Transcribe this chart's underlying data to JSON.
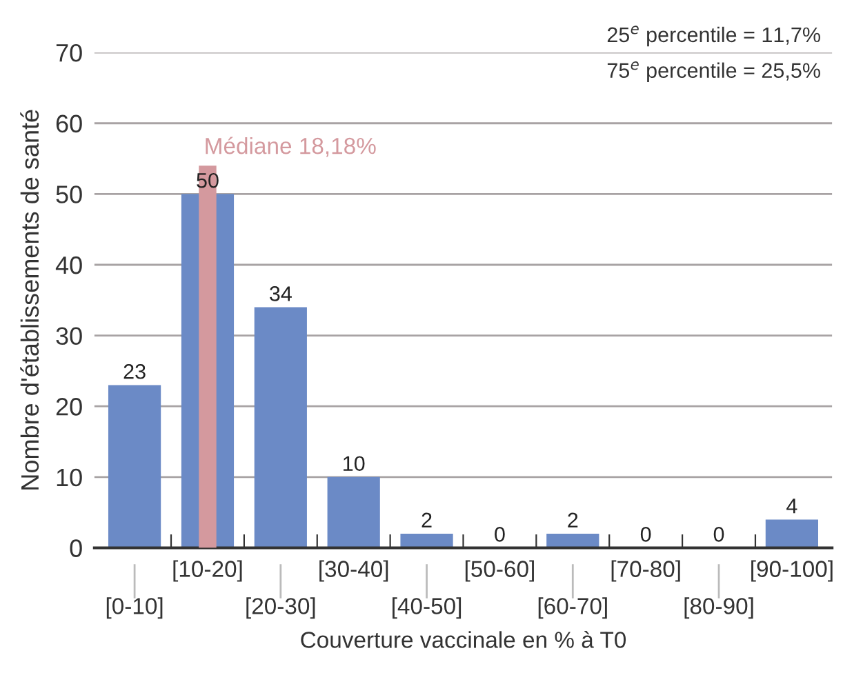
{
  "chart_data": {
    "type": "bar",
    "ylabel": "Nombre d'établissements de santé",
    "xlabel": "Couverture vaccinale en % à T0",
    "categories": [
      "[0-10]",
      "[10-20]",
      "[20-30]",
      "[30-40]",
      "[40-50]",
      "[50-60]",
      "[60-70]",
      "[70-80]",
      "[80-90]",
      "[90-100]"
    ],
    "series": [
      {
        "color": "#6b8ac6",
        "values": [
          23,
          50,
          34,
          10,
          2,
          0,
          2,
          0,
          0,
          4
        ],
        "value_labels": [
          "23",
          "50",
          "34",
          "10",
          "2",
          "0",
          "2",
          "0",
          "0",
          "4"
        ]
      },
      {
        "name": "Médiane 18,18%",
        "color": "#d4999e",
        "values": [
          null,
          54,
          null,
          null,
          null,
          null,
          null,
          null,
          null,
          null
        ]
      }
    ],
    "ylim": [
      0,
      70
    ],
    "yticks": [
      0,
      10,
      20,
      30,
      40,
      50,
      60,
      70
    ],
    "grid": "y",
    "legend": false,
    "annotations": [
      "25$^{e}$ percentile = 11,7%",
      "75$^{e}$ percentile = 25,5%"
    ]
  }
}
